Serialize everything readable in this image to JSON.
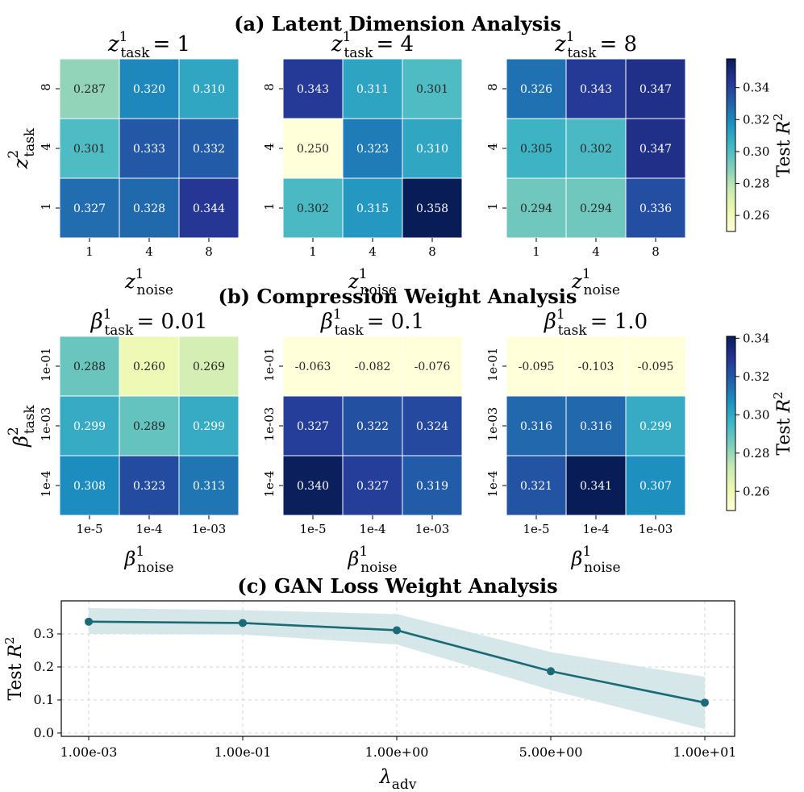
{
  "figure": {
    "section_a_title": "(a) Latent Dimension Analysis",
    "section_b_title": "(b) Compression Weight Analysis",
    "section_c_title": "(c) GAN Loss Weight Analysis"
  },
  "colors": {
    "colormap": [
      "#ffffd9",
      "#edf8b1",
      "#c7e9b4",
      "#7fcdbb",
      "#41b6c4",
      "#1d91c0",
      "#225ea8",
      "#253494",
      "#081d58"
    ],
    "line": "#1b6a78",
    "band": "#cfe3e6",
    "grid": "#d6d6d6"
  },
  "chart_data": [
    {
      "type": "heatmap",
      "section": "a",
      "title_sym": "z",
      "title_sup": "1",
      "title_sub": "task",
      "title_value": "= 1",
      "x_label_sym": "z",
      "x_label_sup": "1",
      "x_label_sub": "noise",
      "y_label_sym": "z",
      "y_label_sup": "2",
      "y_label_sub": "task",
      "x_ticks": [
        "1",
        "4",
        "8"
      ],
      "y_ticks": [
        "8",
        "4",
        "1"
      ],
      "values": [
        [
          0.287,
          0.32,
          0.31
        ],
        [
          0.301,
          0.333,
          0.332
        ],
        [
          0.327,
          0.328,
          0.344
        ]
      ],
      "labels": [
        [
          "0.287",
          "0.320",
          "0.310"
        ],
        [
          "0.301",
          "0.333",
          "0.332"
        ],
        [
          "0.327",
          "0.328",
          "0.344"
        ]
      ],
      "vmin": 0.25,
      "vmax": 0.358
    },
    {
      "type": "heatmap",
      "section": "a",
      "title_sym": "z",
      "title_sup": "1",
      "title_sub": "task",
      "title_value": "= 4",
      "x_label_sym": "z",
      "x_label_sup": "1",
      "x_label_sub": "noise",
      "x_ticks": [
        "1",
        "4",
        "8"
      ],
      "y_ticks": [
        "8",
        "4",
        "1"
      ],
      "values": [
        [
          0.343,
          0.311,
          0.301
        ],
        [
          0.25,
          0.323,
          0.31
        ],
        [
          0.302,
          0.315,
          0.358
        ]
      ],
      "labels": [
        [
          "0.343",
          "0.311",
          "0.301"
        ],
        [
          "0.250",
          "0.323",
          "0.310"
        ],
        [
          "0.302",
          "0.315",
          "0.358"
        ]
      ],
      "vmin": 0.25,
      "vmax": 0.358
    },
    {
      "type": "heatmap",
      "section": "a",
      "title_sym": "z",
      "title_sup": "1",
      "title_sub": "task",
      "title_value": "= 8",
      "x_label_sym": "z",
      "x_label_sup": "1",
      "x_label_sub": "noise",
      "x_ticks": [
        "1",
        "4",
        "8"
      ],
      "y_ticks": [
        "8",
        "4",
        "1"
      ],
      "values": [
        [
          0.326,
          0.343,
          0.347
        ],
        [
          0.305,
          0.302,
          0.347
        ],
        [
          0.294,
          0.294,
          0.336
        ]
      ],
      "labels": [
        [
          "0.326",
          "0.343",
          "0.347"
        ],
        [
          "0.305",
          "0.302",
          "0.347"
        ],
        [
          "0.294",
          "0.294",
          "0.336"
        ]
      ],
      "vmin": 0.25,
      "vmax": 0.358
    },
    {
      "type": "colorbar",
      "section": "a",
      "range": [
        0.25,
        0.358
      ],
      "ticks": [
        0.26,
        0.28,
        0.3,
        0.32,
        0.34
      ],
      "tick_labels": [
        "0.26",
        "0.28",
        "0.30",
        "0.32",
        "0.34"
      ],
      "label_text": "Test ",
      "label_sym": "R",
      "label_sup": "2"
    },
    {
      "type": "heatmap",
      "section": "b",
      "title_sym": "β",
      "title_sup": "1",
      "title_sub": "task",
      "title_value": "= 0.01",
      "x_label_sym": "β",
      "x_label_sup": "1",
      "x_label_sub": "noise",
      "y_label_sym": "β",
      "y_label_sup": "2",
      "y_label_sub": "task",
      "x_ticks": [
        "1e-5",
        "1e-4",
        "1e-03"
      ],
      "y_ticks": [
        "1e-01",
        "1e-03",
        "1e-4"
      ],
      "values": [
        [
          0.288,
          0.26,
          0.269
        ],
        [
          0.299,
          0.289,
          0.299
        ],
        [
          0.308,
          0.323,
          0.313
        ]
      ],
      "labels": [
        [
          "0.288",
          "0.260",
          "0.269"
        ],
        [
          "0.299",
          "0.289",
          "0.299"
        ],
        [
          "0.308",
          "0.323",
          "0.313"
        ]
      ],
      "vmin": 0.25,
      "vmax": 0.341
    },
    {
      "type": "heatmap",
      "section": "b",
      "title_sym": "β",
      "title_sup": "1",
      "title_sub": "task",
      "title_value": "= 0.1",
      "x_label_sym": "β",
      "x_label_sup": "1",
      "x_label_sub": "noise",
      "x_ticks": [
        "1e-5",
        "1e-4",
        "1e-03"
      ],
      "y_ticks": [
        "1e-01",
        "1e-03",
        "1e-4"
      ],
      "values": [
        [
          -0.063,
          -0.082,
          -0.076
        ],
        [
          0.327,
          0.322,
          0.324
        ],
        [
          0.34,
          0.327,
          0.319
        ]
      ],
      "labels": [
        [
          "-0.063",
          "-0.082",
          "-0.076"
        ],
        [
          "0.327",
          "0.322",
          "0.324"
        ],
        [
          "0.340",
          "0.327",
          "0.319"
        ]
      ],
      "vmin": 0.25,
      "vmax": 0.341
    },
    {
      "type": "heatmap",
      "section": "b",
      "title_sym": "β",
      "title_sup": "1",
      "title_sub": "task",
      "title_value": "= 1.0",
      "x_label_sym": "β",
      "x_label_sup": "1",
      "x_label_sub": "noise",
      "x_ticks": [
        "1e-5",
        "1e-4",
        "1e-03"
      ],
      "y_ticks": [
        "1e-01",
        "1e-03",
        "1e-4"
      ],
      "values": [
        [
          -0.095,
          -0.103,
          -0.095
        ],
        [
          0.316,
          0.316,
          0.299
        ],
        [
          0.321,
          0.341,
          0.307
        ]
      ],
      "labels": [
        [
          "-0.095",
          "-0.103",
          "-0.095"
        ],
        [
          "0.316",
          "0.316",
          "0.299"
        ],
        [
          "0.321",
          "0.341",
          "0.307"
        ]
      ],
      "vmin": 0.25,
      "vmax": 0.341
    },
    {
      "type": "colorbar",
      "section": "b",
      "range": [
        0.25,
        0.341
      ],
      "ticks": [
        0.26,
        0.28,
        0.3,
        0.32,
        0.34
      ],
      "tick_labels": [
        "0.26",
        "0.28",
        "0.30",
        "0.32",
        "0.34"
      ],
      "label_text": "Test ",
      "label_sym": "R",
      "label_sup": "2"
    },
    {
      "type": "line",
      "section": "c",
      "x": [
        "1.00e-03",
        "1.00e-01",
        "1.00e+00",
        "5.00e+00",
        "1.00e+01"
      ],
      "y": [
        0.337,
        0.333,
        0.311,
        0.187,
        0.092
      ],
      "band_lower": [
        0.3,
        0.298,
        0.268,
        0.13,
        0.012
      ],
      "band_upper": [
        0.378,
        0.372,
        0.36,
        0.245,
        0.17
      ],
      "ylim": [
        -0.01,
        0.4
      ],
      "y_ticks": [
        0.0,
        0.1,
        0.2,
        0.3
      ],
      "y_tick_labels": [
        "0.0",
        "0.1",
        "0.2",
        "0.3"
      ],
      "x_label_sym": "λ",
      "x_label_sub": "adv",
      "y_label_text": "Test ",
      "y_label_sym": "R",
      "y_label_sup": "2",
      "grid": true
    }
  ]
}
